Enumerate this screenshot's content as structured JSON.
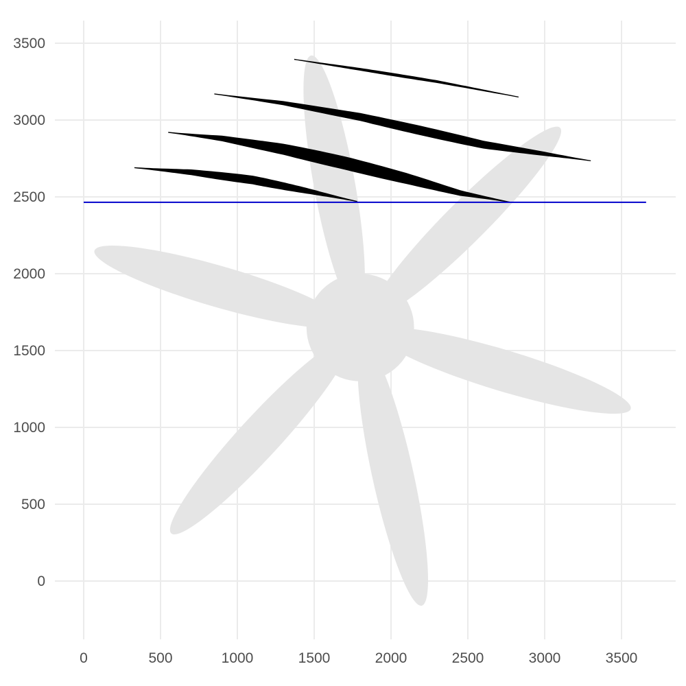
{
  "chart_data": {
    "type": "scatter",
    "title": "",
    "xlabel": "",
    "ylabel": "",
    "xlim": [
      -100,
      3850
    ],
    "ylim": [
      -400,
      3700
    ],
    "x_ticks": [
      "0",
      "500",
      "1000",
      "1500",
      "2000",
      "2500",
      "3000",
      "3500"
    ],
    "y_ticks": [
      "0",
      "500",
      "1000",
      "1500",
      "2000",
      "2500",
      "3000",
      "3500"
    ],
    "grid": true,
    "legend": "none",
    "colors": {
      "grid": "#ebebeb",
      "propeller": "#e5e5e5",
      "wake": "#000000",
      "reference_line": "#0000cc",
      "tick_text": "#4d4d4d"
    },
    "propeller": {
      "hub_center": [
        1800,
        1650
      ],
      "hub_radius": 350,
      "blade_tips": [
        [
          1480,
          3420
        ],
        [
          3100,
          2950
        ],
        [
          3560,
          1120
        ],
        [
          2200,
          -160
        ],
        [
          570,
          310
        ],
        [
          70,
          2150
        ]
      ]
    },
    "reference_line": {
      "y": 2465,
      "x_from": 0,
      "x_to": 3660
    },
    "wake_streaks": [
      {
        "points": [
          [
            330,
            2690
          ],
          [
            700,
            2660
          ],
          [
            1100,
            2610
          ],
          [
            1450,
            2540
          ],
          [
            1780,
            2470
          ]
        ],
        "max_width": 50
      },
      {
        "points": [
          [
            550,
            2920
          ],
          [
            900,
            2880
          ],
          [
            1300,
            2810
          ],
          [
            1700,
            2720
          ],
          [
            2100,
            2620
          ],
          [
            2450,
            2525
          ],
          [
            2780,
            2465
          ]
        ],
        "max_width": 80
      },
      {
        "points": [
          [
            850,
            3170
          ],
          [
            1300,
            3110
          ],
          [
            1800,
            3020
          ],
          [
            2200,
            2930
          ],
          [
            2600,
            2840
          ],
          [
            3000,
            2780
          ],
          [
            3300,
            2735
          ]
        ],
        "max_width": 55
      },
      {
        "points": [
          [
            1370,
            3395
          ],
          [
            1800,
            3330
          ],
          [
            2300,
            3250
          ],
          [
            2830,
            3150
          ]
        ],
        "max_width": 14
      }
    ]
  }
}
